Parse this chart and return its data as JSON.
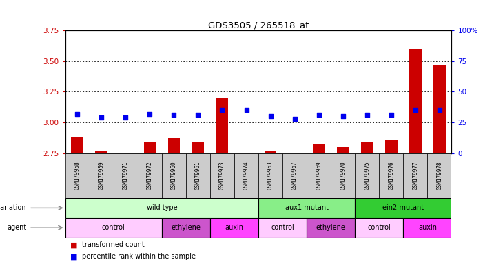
{
  "title": "GDS3505 / 265518_at",
  "samples": [
    "GSM179958",
    "GSM179959",
    "GSM179971",
    "GSM179972",
    "GSM179960",
    "GSM179961",
    "GSM179973",
    "GSM179974",
    "GSM179963",
    "GSM179967",
    "GSM179969",
    "GSM179970",
    "GSM179975",
    "GSM179976",
    "GSM179977",
    "GSM179978"
  ],
  "bar_values": [
    2.88,
    2.77,
    2.75,
    2.84,
    2.87,
    2.84,
    3.2,
    2.75,
    2.77,
    2.75,
    2.82,
    2.8,
    2.84,
    2.86,
    3.6,
    3.47
  ],
  "dot_values": [
    3.07,
    3.04,
    3.04,
    3.07,
    3.06,
    3.06,
    3.1,
    3.1,
    3.05,
    3.03,
    3.06,
    3.05,
    3.06,
    3.06,
    3.1,
    3.1
  ],
  "ylim_left": [
    2.75,
    3.75
  ],
  "ylim_right": [
    0,
    100
  ],
  "yticks_left": [
    2.75,
    3.0,
    3.25,
    3.5,
    3.75
  ],
  "yticks_right": [
    0,
    25,
    50,
    75,
    100
  ],
  "ytick_labels_right": [
    "0",
    "25",
    "50",
    "75",
    "100%"
  ],
  "bar_color": "#cc0000",
  "dot_color": "#0000ee",
  "bar_bottom": 2.75,
  "sample_bg_color": "#cccccc",
  "genotype_groups": [
    {
      "label": "wild type",
      "start": 0,
      "end": 8,
      "color": "#ccffcc"
    },
    {
      "label": "aux1 mutant",
      "start": 8,
      "end": 12,
      "color": "#88ee88"
    },
    {
      "label": "ein2 mutant",
      "start": 12,
      "end": 16,
      "color": "#33cc33"
    }
  ],
  "agent_groups": [
    {
      "label": "control",
      "start": 0,
      "end": 4,
      "color": "#ffccff"
    },
    {
      "label": "ethylene",
      "start": 4,
      "end": 6,
      "color": "#cc55cc"
    },
    {
      "label": "auxin",
      "start": 6,
      "end": 8,
      "color": "#ff44ff"
    },
    {
      "label": "control",
      "start": 8,
      "end": 10,
      "color": "#ffccff"
    },
    {
      "label": "ethylene",
      "start": 10,
      "end": 12,
      "color": "#cc55cc"
    },
    {
      "label": "control",
      "start": 12,
      "end": 14,
      "color": "#ffccff"
    },
    {
      "label": "auxin",
      "start": 14,
      "end": 16,
      "color": "#ff44ff"
    }
  ],
  "legend_items": [
    {
      "label": "transformed count",
      "color": "#cc0000"
    },
    {
      "label": "percentile rank within the sample",
      "color": "#0000ee"
    }
  ],
  "left_tick_color": "#cc0000",
  "right_tick_color": "#0000ee",
  "background_color": "#ffffff"
}
